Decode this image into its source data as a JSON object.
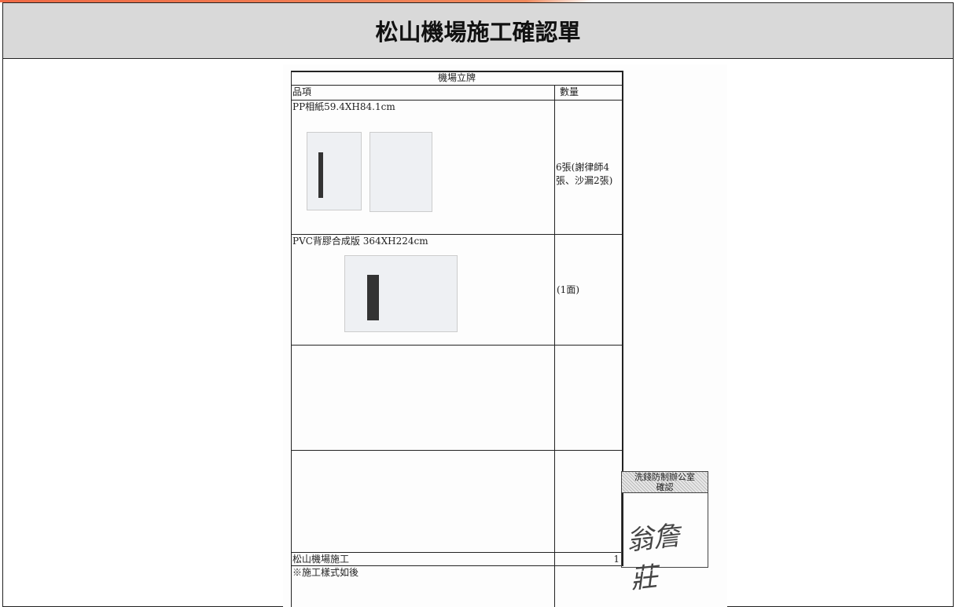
{
  "header": {
    "title": "松山機場施工確認單"
  },
  "document": {
    "table": {
      "title": "機場立牌",
      "columns": [
        "品項",
        "數量"
      ],
      "rows": [
        {
          "item": "PP相紙59.4XH84.1cm",
          "quantity": "6張(謝律師4張、沙漏2張)"
        },
        {
          "item": "PVC背膠合成版 364XH224cm",
          "quantity": "(1面)"
        }
      ],
      "footer": {
        "item": "松山機場施工",
        "quantity": "1"
      },
      "note": "※施工樣式如後"
    },
    "stamp": {
      "title": "洗錢防制辦公室",
      "subtitle": "確認",
      "signature": "翁詹莊"
    }
  }
}
